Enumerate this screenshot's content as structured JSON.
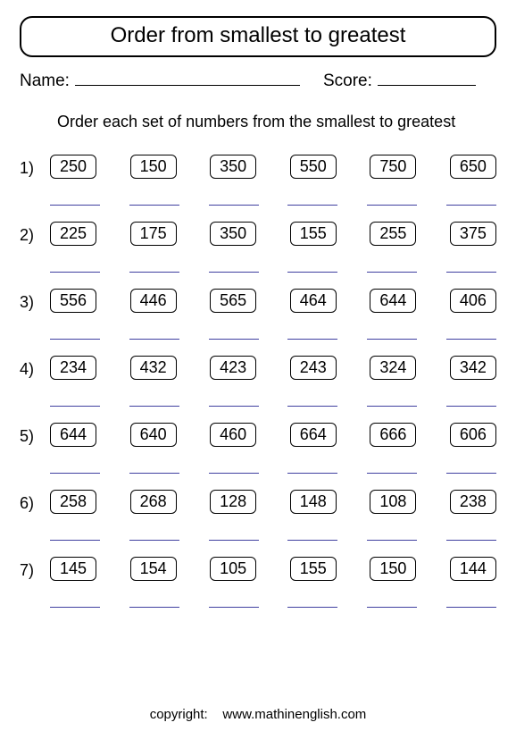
{
  "title": "Order from smallest to greatest",
  "name_label": "Name:",
  "score_label": "Score:",
  "name_line_width": 252,
  "score_line_width": 110,
  "instruction": "Order each set of numbers from the smallest to greatest",
  "problems": [
    {
      "label": "1)",
      "nums": [
        "250",
        "150",
        "350",
        "550",
        "750",
        "650"
      ]
    },
    {
      "label": "2)",
      "nums": [
        "225",
        "175",
        "350",
        "155",
        "255",
        "375"
      ]
    },
    {
      "label": "3)",
      "nums": [
        "556",
        "446",
        "565",
        "464",
        "644",
        "406"
      ]
    },
    {
      "label": "4)",
      "nums": [
        "234",
        "432",
        "423",
        "243",
        "324",
        "342"
      ]
    },
    {
      "label": "5)",
      "nums": [
        "644",
        "640",
        "460",
        "664",
        "666",
        "606"
      ]
    },
    {
      "label": "6)",
      "nums": [
        "258",
        "268",
        "128",
        "148",
        "108",
        "238"
      ]
    },
    {
      "label": "7)",
      "nums": [
        "145",
        "154",
        "105",
        "155",
        "150",
        "144"
      ]
    }
  ],
  "answer_slots": 6,
  "copyright_label": "copyright:",
  "copyright_site": "www.mathinenglish.com",
  "answer_line_color": "#4040a0"
}
